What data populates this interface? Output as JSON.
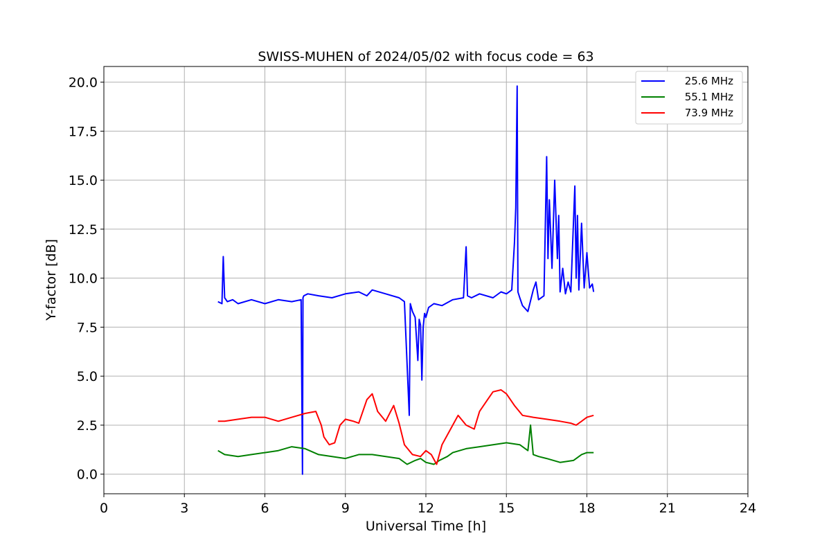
{
  "chart_data": {
    "type": "line",
    "title": "SWISS-MUHEN of 2024/05/02 with focus code = 63",
    "xlabel": "Universal Time [h]",
    "ylabel": "Y-factor [dB]",
    "xlim": [
      0,
      24
    ],
    "ylim": [
      -1.0,
      20.8
    ],
    "xticks": [
      0,
      3,
      6,
      9,
      12,
      15,
      18,
      21,
      24
    ],
    "xtick_labels": [
      "0",
      "3",
      "6",
      "9",
      "12",
      "15",
      "18",
      "21",
      "24"
    ],
    "yticks": [
      0.0,
      2.5,
      5.0,
      7.5,
      10.0,
      12.5,
      15.0,
      17.5,
      20.0
    ],
    "ytick_labels": [
      "0.0",
      "2.5",
      "5.0",
      "7.5",
      "10.0",
      "12.5",
      "15.0",
      "17.5",
      "20.0"
    ],
    "grid": true,
    "legend_position": "top-right",
    "series": [
      {
        "name": "25.6 MHz",
        "color": "#0000ff",
        "x": [
          4.25,
          4.4,
          4.45,
          4.5,
          4.6,
          4.8,
          5.0,
          5.5,
          6.0,
          6.5,
          7.0,
          7.35,
          7.4,
          7.42,
          7.45,
          7.6,
          8.0,
          8.5,
          9.0,
          9.5,
          9.8,
          10.0,
          10.5,
          11.0,
          11.2,
          11.35,
          11.38,
          11.42,
          11.5,
          11.6,
          11.7,
          11.75,
          11.8,
          11.85,
          11.9,
          11.95,
          12.0,
          12.1,
          12.3,
          12.6,
          13.0,
          13.4,
          13.5,
          13.55,
          13.7,
          14.0,
          14.5,
          14.8,
          15.0,
          15.2,
          15.3,
          15.35,
          15.4,
          15.43,
          15.5,
          15.6,
          15.8,
          16.0,
          16.1,
          16.2,
          16.4,
          16.5,
          16.55,
          16.6,
          16.7,
          16.8,
          16.9,
          16.95,
          17.0,
          17.1,
          17.2,
          17.3,
          17.4,
          17.55,
          17.6,
          17.65,
          17.7,
          17.8,
          17.9,
          18.0,
          18.1,
          18.2,
          18.25
        ],
        "y": [
          8.8,
          8.7,
          11.1,
          9.0,
          8.8,
          8.9,
          8.7,
          8.9,
          8.7,
          8.9,
          8.8,
          8.9,
          0.0,
          9.0,
          9.1,
          9.2,
          9.1,
          9.0,
          9.2,
          9.3,
          9.1,
          9.4,
          9.2,
          9.0,
          8.8,
          4.0,
          3.0,
          8.7,
          8.3,
          8.0,
          5.8,
          7.9,
          7.6,
          4.8,
          7.5,
          8.2,
          8.0,
          8.5,
          8.7,
          8.6,
          8.9,
          9.0,
          11.6,
          9.1,
          9.0,
          9.2,
          9.0,
          9.3,
          9.2,
          9.4,
          11.8,
          13.6,
          19.8,
          9.3,
          9.0,
          8.6,
          8.3,
          9.4,
          9.8,
          8.9,
          9.1,
          16.2,
          11.0,
          14.0,
          10.5,
          15.0,
          11.0,
          13.2,
          9.3,
          10.5,
          9.2,
          9.8,
          9.3,
          14.7,
          10.0,
          13.2,
          9.4,
          12.8,
          9.5,
          11.3,
          9.5,
          9.7,
          9.3
        ]
      },
      {
        "name": "55.1 MHz",
        "color": "#008000",
        "x": [
          4.25,
          4.5,
          5.0,
          5.5,
          6.0,
          6.5,
          7.0,
          7.5,
          8.0,
          8.5,
          9.0,
          9.5,
          10.0,
          10.5,
          11.0,
          11.3,
          11.6,
          11.8,
          12.0,
          12.3,
          12.5,
          12.8,
          13.0,
          13.5,
          14.0,
          14.5,
          15.0,
          15.5,
          15.8,
          15.9,
          16.0,
          16.2,
          16.5,
          17.0,
          17.5,
          17.8,
          18.0,
          18.25
        ],
        "y": [
          1.2,
          1.0,
          0.9,
          1.0,
          1.1,
          1.2,
          1.4,
          1.3,
          1.0,
          0.9,
          0.8,
          1.0,
          1.0,
          0.9,
          0.8,
          0.5,
          0.7,
          0.8,
          0.6,
          0.5,
          0.7,
          0.9,
          1.1,
          1.3,
          1.4,
          1.5,
          1.6,
          1.5,
          1.2,
          2.5,
          1.0,
          0.9,
          0.8,
          0.6,
          0.7,
          1.0,
          1.1,
          1.1
        ]
      },
      {
        "name": "73.9 MHz",
        "color": "#ff0000",
        "x": [
          4.25,
          4.5,
          5.0,
          5.5,
          6.0,
          6.5,
          7.0,
          7.5,
          7.9,
          8.1,
          8.2,
          8.4,
          8.6,
          8.8,
          9.0,
          9.3,
          9.5,
          9.8,
          10.0,
          10.2,
          10.5,
          10.8,
          11.0,
          11.2,
          11.5,
          11.8,
          12.0,
          12.2,
          12.4,
          12.6,
          12.8,
          13.0,
          13.2,
          13.5,
          13.8,
          14.0,
          14.3,
          14.5,
          14.8,
          15.0,
          15.3,
          15.6,
          16.0,
          16.5,
          17.0,
          17.4,
          17.6,
          17.8,
          18.0,
          18.25
        ],
        "y": [
          2.7,
          2.7,
          2.8,
          2.9,
          2.9,
          2.7,
          2.9,
          3.1,
          3.2,
          2.5,
          1.9,
          1.5,
          1.6,
          2.5,
          2.8,
          2.7,
          2.6,
          3.8,
          4.1,
          3.2,
          2.7,
          3.5,
          2.6,
          1.5,
          1.0,
          0.9,
          1.2,
          1.0,
          0.5,
          1.5,
          2.0,
          2.5,
          3.0,
          2.5,
          2.3,
          3.2,
          3.8,
          4.2,
          4.3,
          4.1,
          3.5,
          3.0,
          2.9,
          2.8,
          2.7,
          2.6,
          2.5,
          2.7,
          2.9,
          3.0
        ]
      }
    ]
  }
}
